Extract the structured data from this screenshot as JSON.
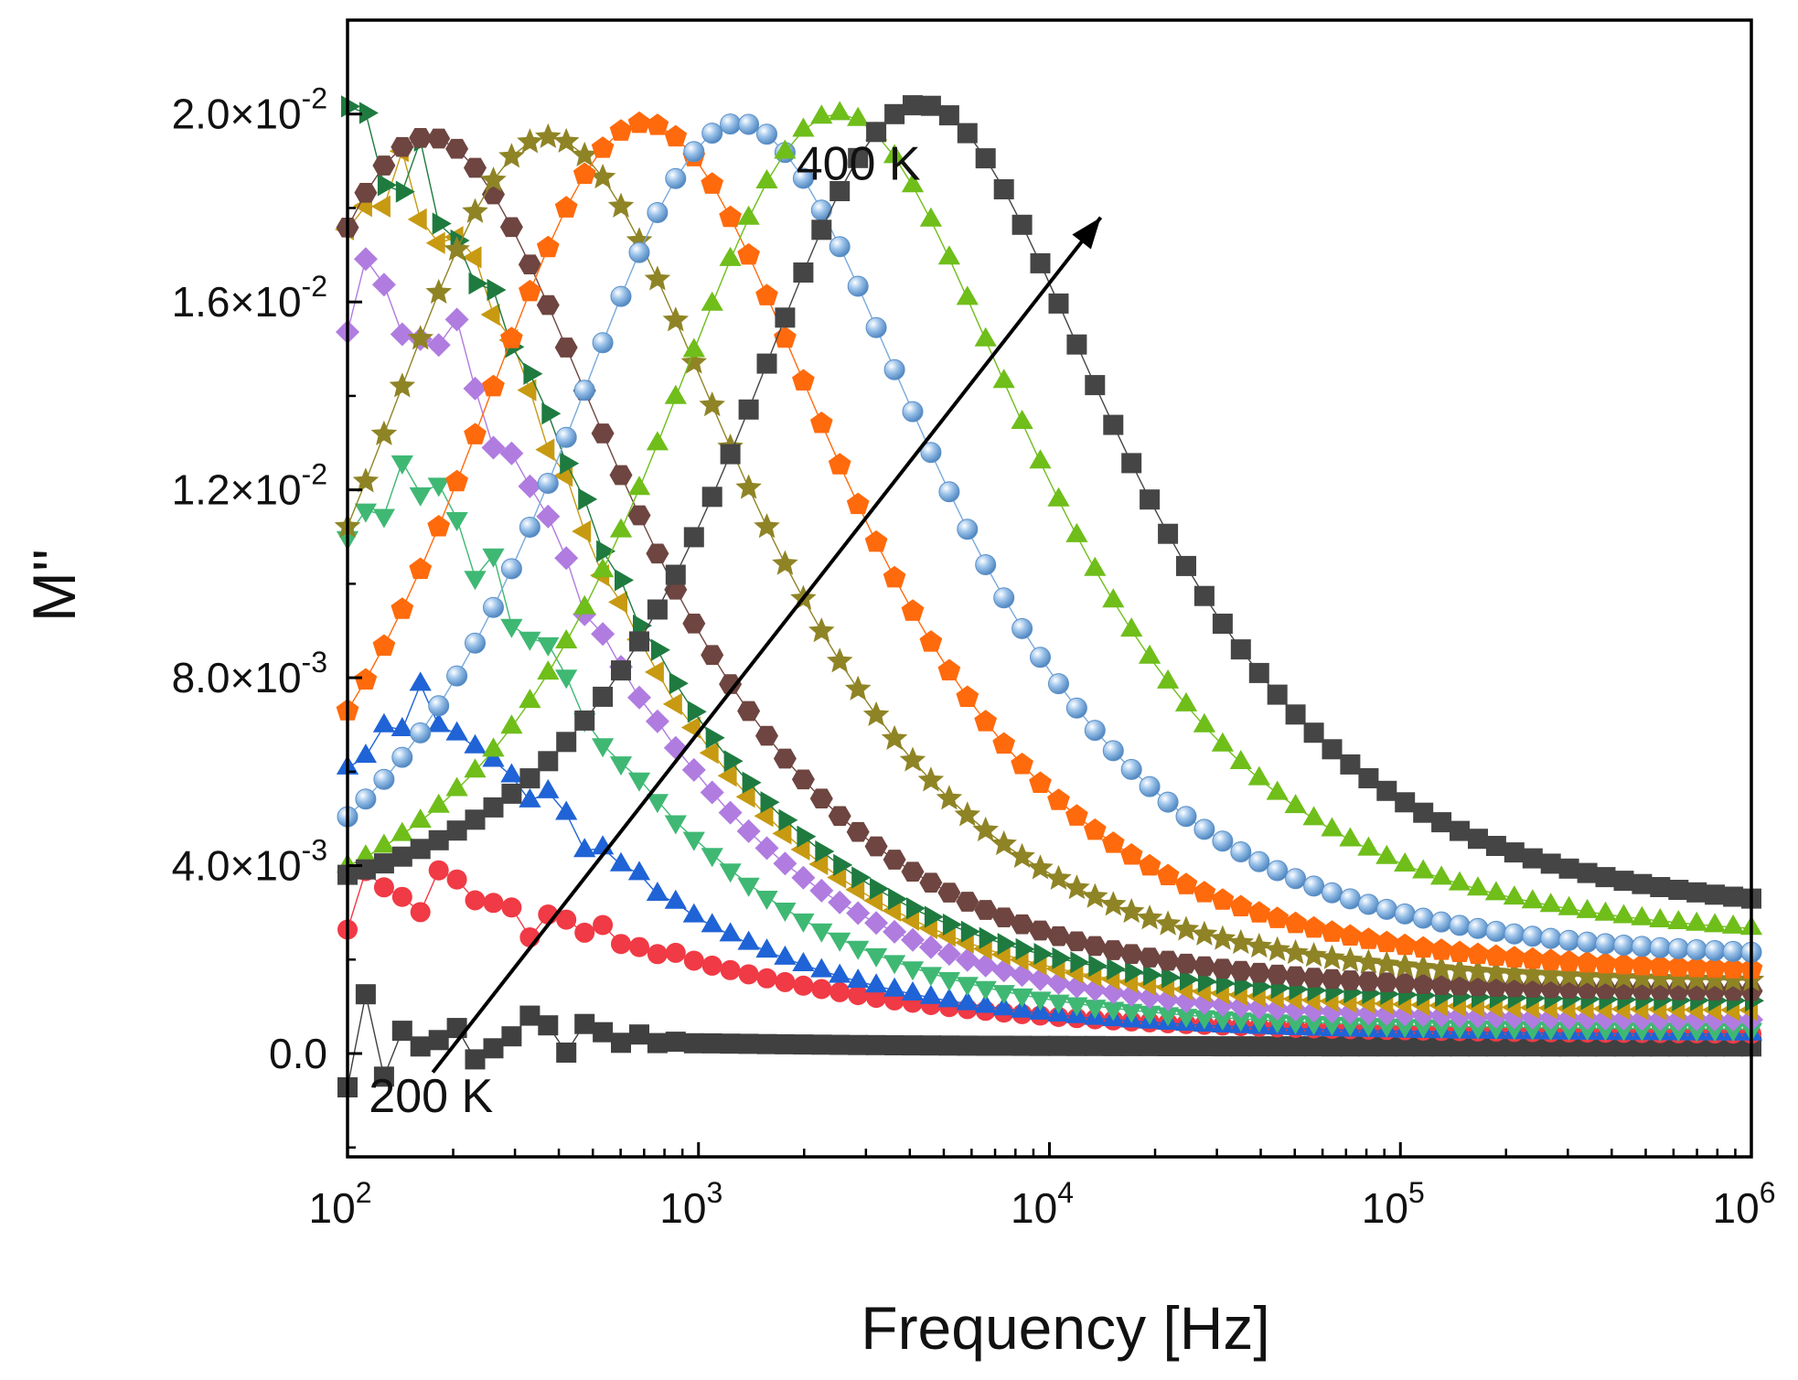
{
  "chart_data": {
    "type": "scatter",
    "xlabel": "Frequency [Hz]",
    "ylabel": "M''",
    "xscale": "log",
    "xlim": [
      100,
      1000000
    ],
    "ylim": [
      -0.0022,
      0.022
    ],
    "grid": false,
    "legend": "none",
    "x_ticks": [
      {
        "value": 100,
        "base": "10",
        "exp": "2"
      },
      {
        "value": 1000,
        "base": "10",
        "exp": "3"
      },
      {
        "value": 10000,
        "base": "10",
        "exp": "4"
      },
      {
        "value": 100000,
        "base": "10",
        "exp": "5"
      },
      {
        "value": 1000000,
        "base": "10",
        "exp": "6"
      }
    ],
    "y_ticks": [
      {
        "value": 0.0,
        "mant": "0.0",
        "exp": ""
      },
      {
        "value": 0.004,
        "mant": "4.0×10",
        "exp": "-3"
      },
      {
        "value": 0.008,
        "mant": "8.0×10",
        "exp": "-3"
      },
      {
        "value": 0.012,
        "mant": "1.2×10",
        "exp": "-2"
      },
      {
        "value": 0.016,
        "mant": "1.6×10",
        "exp": "-2"
      },
      {
        "value": 0.02,
        "mant": "2.0×10",
        "exp": "-2"
      }
    ],
    "annotations": [
      {
        "text": "200 K",
        "x": 115,
        "y": -0.00125
      },
      {
        "text": "400 K",
        "x": 1900,
        "y": 0.0186
      }
    ],
    "arrow": {
      "x_start": 175,
      "y_start": -0.0004,
      "x_end": 14000,
      "y_end": 0.0178
    },
    "series": [
      {
        "color": "#404040",
        "marker": "square",
        "noise": true,
        "peak_x": 100,
        "peak_y": 0.00038,
        "width": 1.0,
        "hf": 0.00015
      },
      {
        "color": "#f03a45",
        "marker": "circle",
        "noise": true,
        "peak_x": 120,
        "peak_y": 0.0034,
        "width": 1.3,
        "hf": 0.0004
      },
      {
        "color": "#1f63d6",
        "marker": "triangle-up",
        "noise": true,
        "peak_x": 110,
        "peak_y": 0.0072,
        "width": 1.05,
        "hf": 0.0004
      },
      {
        "color": "#3fb874",
        "marker": "triangle-down",
        "noise": true,
        "peak_x": 118,
        "peak_y": 0.0118,
        "width": 1.0,
        "hf": 0.0005
      },
      {
        "color": "#b07ce0",
        "marker": "diamond",
        "noise": true,
        "peak_x": 110,
        "peak_y": 0.0162,
        "width": 1.0,
        "hf": 0.0007
      },
      {
        "color": "#c79a12",
        "marker": "triangle-left",
        "noise": true,
        "peak_x": 108,
        "peak_y": 0.0187,
        "width": 1.0,
        "hf": 0.0009
      },
      {
        "color": "#1f7a40",
        "marker": "triangle-right",
        "noise": true,
        "peak_x": 108,
        "peak_y": 0.0193,
        "width": 1.0,
        "hf": 0.0011
      },
      {
        "color": "#6e4540",
        "marker": "hexagon",
        "noise": false,
        "peak_x": 150,
        "peak_y": 0.0194,
        "width": 1.0,
        "hf": 0.0013
      },
      {
        "color": "#8f8425",
        "marker": "star",
        "noise": false,
        "peak_x": 330,
        "peak_y": 0.0194,
        "width": 1.0,
        "hf": 0.0015
      },
      {
        "color": "#ff6a0c",
        "marker": "pentagon",
        "noise": false,
        "peak_x": 620,
        "peak_y": 0.0197,
        "width": 1.0,
        "hf": 0.0017
      },
      {
        "color": "#79aadc",
        "marker": "sphere",
        "noise": false,
        "peak_x": 1150,
        "peak_y": 0.0197,
        "width": 1.0,
        "hf": 0.002
      },
      {
        "color": "#6fbe1a",
        "marker": "triangle-up",
        "noise": false,
        "peak_x": 2200,
        "peak_y": 0.0199,
        "width": 1.0,
        "hf": 0.0024
      },
      {
        "color": "#454545",
        "marker": "square",
        "noise": false,
        "peak_x": 3800,
        "peak_y": 0.0201,
        "width": 1.0,
        "hf": 0.0029
      }
    ]
  }
}
